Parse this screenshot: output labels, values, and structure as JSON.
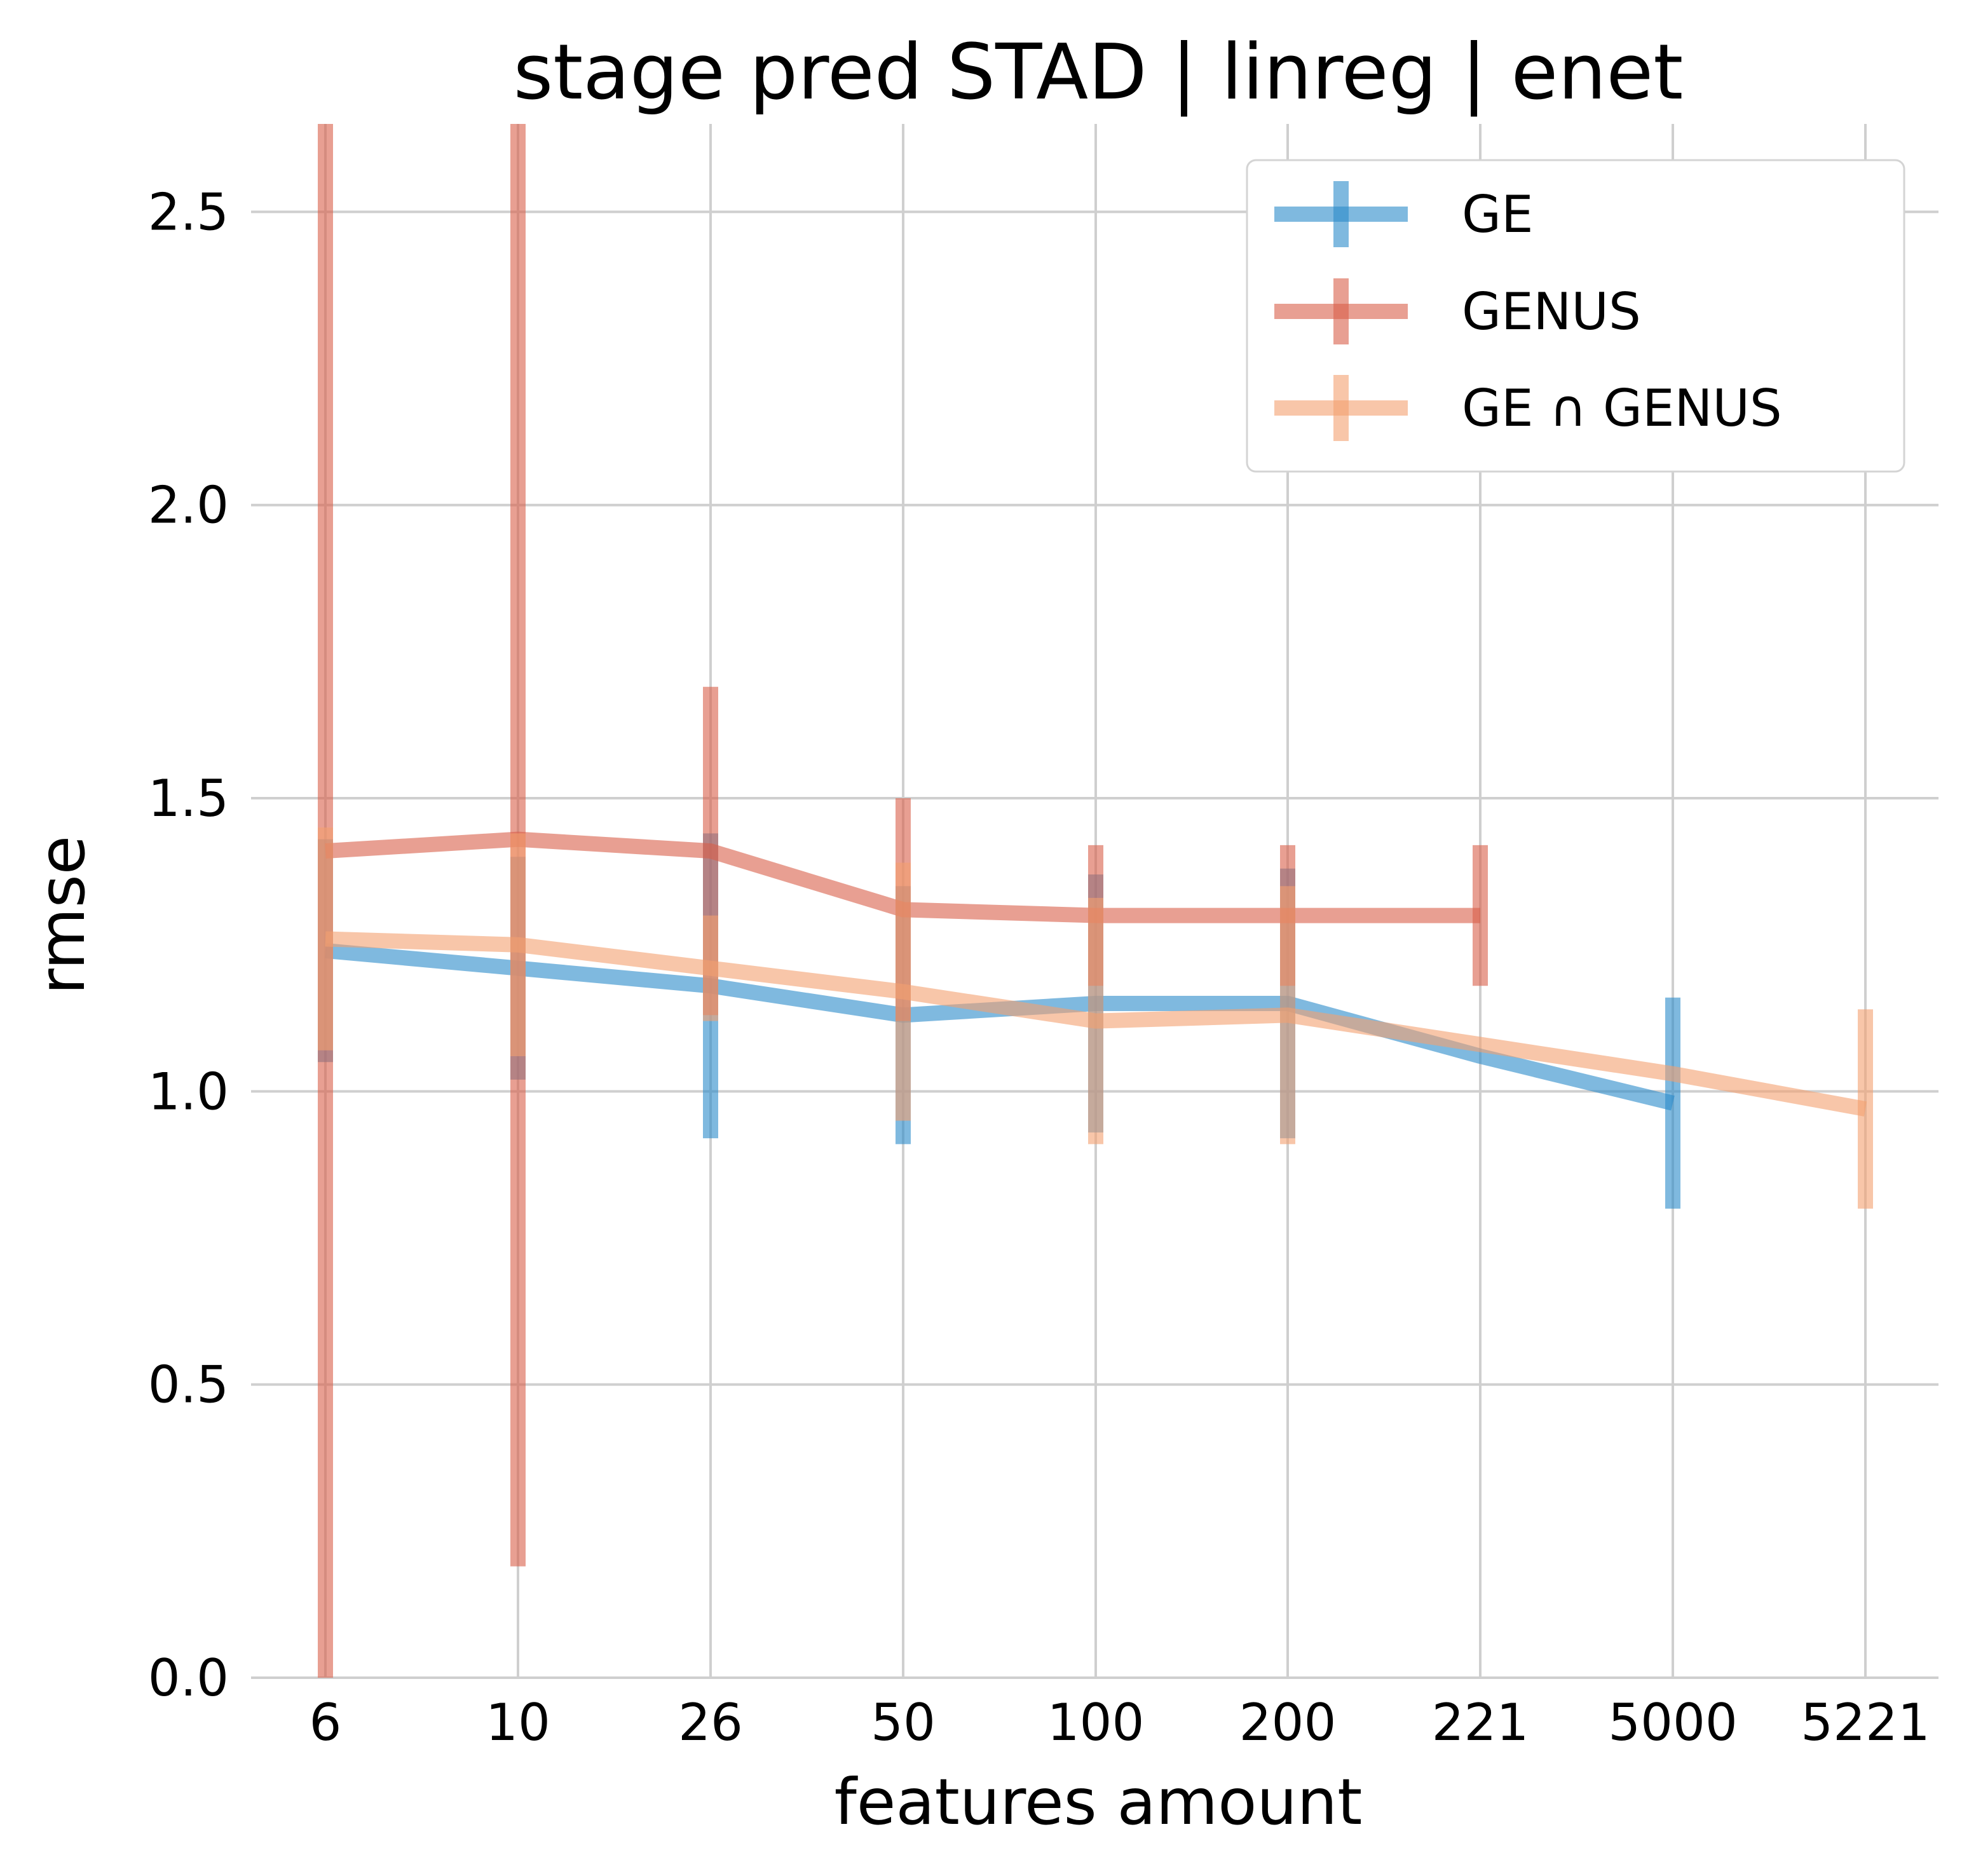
{
  "chart_data": {
    "type": "line",
    "title": "stage pred STAD | linreg | enet",
    "xlabel": "features amount",
    "ylabel": "rmse",
    "categories": [
      "6",
      "10",
      "26",
      "50",
      "100",
      "200",
      "221",
      "5000",
      "5221"
    ],
    "ylim": [
      0,
      2.65
    ],
    "yticks": [
      "0.0",
      "0.5",
      "1.0",
      "1.5",
      "2.0",
      "2.5"
    ],
    "grid": true,
    "legend_position": "top-right",
    "series": [
      {
        "name": "GE",
        "color": "#2a8bc9",
        "points": [
          {
            "x": "6",
            "y": 1.24,
            "err": 0.19
          },
          {
            "x": "10",
            "y": 1.21,
            "err": 0.19
          },
          {
            "x": "26",
            "y": 1.18,
            "err": 0.26
          },
          {
            "x": "50",
            "y": 1.13,
            "err": 0.22
          },
          {
            "x": "100",
            "y": 1.15,
            "err": 0.22
          },
          {
            "x": "200",
            "y": 1.15,
            "err": 0.23
          },
          {
            "x": "221",
            "y": 1.06,
            "err": null
          },
          {
            "x": "5000",
            "y": 0.98,
            "err": 0.18
          }
        ]
      },
      {
        "name": "GENUS",
        "color": "#d95f4a",
        "points": [
          {
            "x": "6",
            "y": 1.41,
            "err": 1.54
          },
          {
            "x": "10",
            "y": 1.43,
            "err": 1.24
          },
          {
            "x": "26",
            "y": 1.41,
            "err": 0.28
          },
          {
            "x": "50",
            "y": 1.31,
            "err": 0.19
          },
          {
            "x": "100",
            "y": 1.3,
            "err": 0.12
          },
          {
            "x": "200",
            "y": 1.3,
            "err": 0.12
          },
          {
            "x": "221",
            "y": 1.3,
            "err": 0.12
          }
        ]
      },
      {
        "name": "GE ∩ GENUS",
        "color": "#f4a070",
        "points": [
          {
            "x": "6",
            "y": 1.26,
            "err": 0.19
          },
          {
            "x": "10",
            "y": 1.25,
            "err": 0.19
          },
          {
            "x": "26",
            "y": 1.21,
            "err": 0.09
          },
          {
            "x": "50",
            "y": 1.17,
            "err": 0.22
          },
          {
            "x": "100",
            "y": 1.12,
            "err": 0.21
          },
          {
            "x": "200",
            "y": 1.13,
            "err": 0.22
          },
          {
            "x": "221",
            "y": 1.08,
            "err": null
          },
          {
            "x": "5000",
            "y": 1.03,
            "err": null
          },
          {
            "x": "5221",
            "y": 0.97,
            "err": 0.17
          }
        ]
      }
    ]
  }
}
